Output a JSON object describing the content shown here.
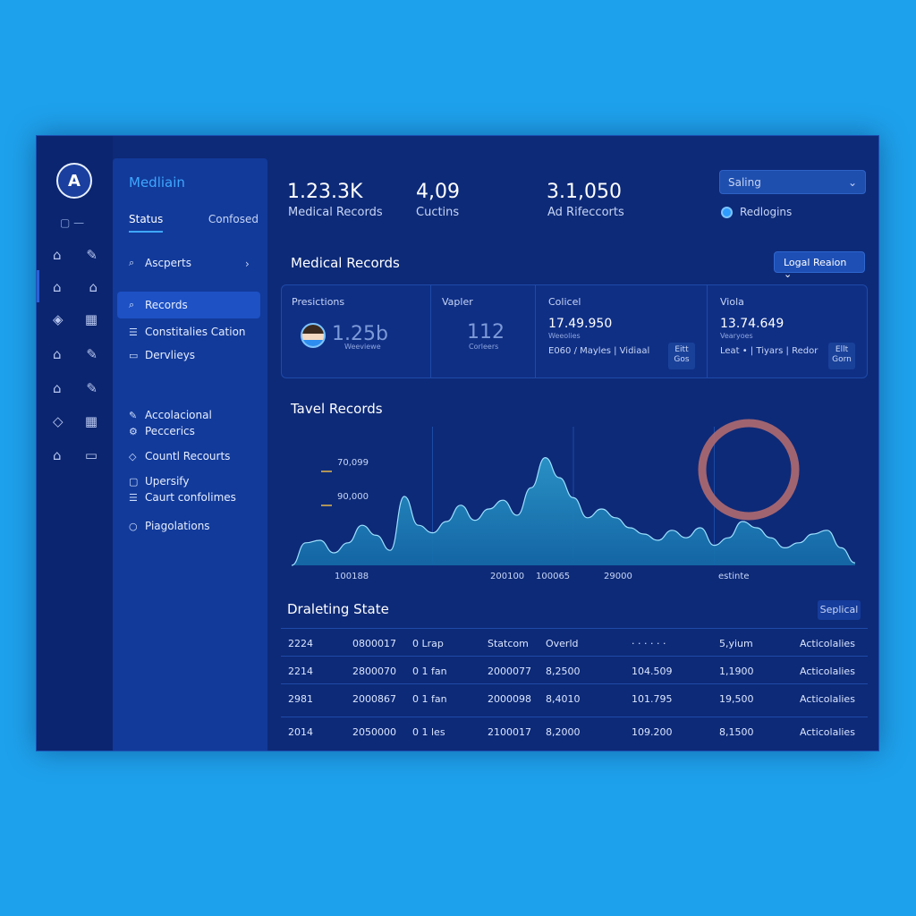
{
  "colors": {
    "page_bg": "#1ea1ec",
    "panel_bg": "#0d2a78",
    "accent": "#3ea7ff",
    "chart_fill": "#1a7fb0",
    "ring": "#b06a70"
  },
  "logo": {
    "text": "A"
  },
  "rail": {
    "top_label": "▢ —",
    "icons": [
      "home-icon",
      "edit-icon",
      "home-icon",
      "home-icon",
      "grid-icon",
      "grid-icon",
      "home-icon",
      "edit-icon",
      "home-icon",
      "edit-icon",
      "shield-icon",
      "grid-icon",
      "home-icon",
      "folder-icon"
    ]
  },
  "sidebar": {
    "title": "Medliain",
    "tabs": [
      "Status",
      "Confosed"
    ],
    "items": [
      {
        "label": "Ascperts",
        "icon": "search-icon"
      },
      {
        "label": "Records",
        "icon": "search-icon"
      },
      {
        "label": "Constitalies Cation",
        "icon": "list-icon"
      },
      {
        "label": "Dervlieys",
        "icon": "card-icon"
      },
      {
        "label": "Accolacional",
        "icon": "edit-icon"
      },
      {
        "label": "Peccerics",
        "icon": "gear-icon"
      },
      {
        "label": "Countl Recourts",
        "icon": "diamond-icon"
      },
      {
        "label": "Upersify",
        "icon": "box-icon"
      },
      {
        "label": "Caurt confolimes",
        "icon": "list-icon"
      },
      {
        "label": "Piagolations",
        "icon": "circle-icon"
      }
    ]
  },
  "stats": [
    {
      "value": "1.23.3K",
      "label": "Medical Records"
    },
    {
      "value": "4,09",
      "label": "Cuctins"
    },
    {
      "value": "3.1,050",
      "label": "Ad Rifeccorts"
    }
  ],
  "top_select": {
    "value": "Saling"
  },
  "top_radio": {
    "label": "Redlogins"
  },
  "records_section": {
    "title": "Medical Records",
    "button": "Logal Reaion"
  },
  "cards": [
    {
      "title": "Presictions",
      "big": "1.25b",
      "sub": "Weeviewe"
    },
    {
      "title": "Vapler",
      "big": "112",
      "sub": "Corleers"
    },
    {
      "title": "Colicel",
      "value": "17.49.950",
      "sub": "Weeolies",
      "row": "E060 / Mayles | Vidiaal",
      "btn": "Eitt Gos"
    },
    {
      "title": "Viola",
      "value": "13.74.649",
      "sub": "Vearyoes",
      "row": "Leat • | Tiyars | Redor",
      "btn": "Ellt Gorn"
    }
  ],
  "chart_section": {
    "title": "Tavel Records"
  },
  "chart_data": {
    "type": "area",
    "x": [
      0,
      1,
      2,
      3,
      4,
      5,
      6,
      7,
      8,
      9,
      10,
      11,
      12,
      13,
      14,
      15,
      16,
      17,
      18,
      19,
      20,
      21,
      22,
      23,
      24,
      25,
      26,
      27,
      28,
      29,
      30,
      31,
      32,
      33,
      34,
      35,
      36,
      37,
      38,
      39,
      40
    ],
    "y": [
      0.0,
      0.18,
      0.2,
      0.1,
      0.18,
      0.32,
      0.24,
      0.12,
      0.55,
      0.32,
      0.26,
      0.35,
      0.48,
      0.36,
      0.45,
      0.52,
      0.4,
      0.62,
      0.86,
      0.7,
      0.54,
      0.38,
      0.45,
      0.38,
      0.3,
      0.25,
      0.2,
      0.28,
      0.22,
      0.3,
      0.16,
      0.22,
      0.35,
      0.3,
      0.22,
      0.14,
      0.18,
      0.25,
      0.28,
      0.14,
      0.02
    ],
    "ytick_labels": [
      "70,099",
      "90,000"
    ],
    "xtick_labels": [
      "100188",
      "200100",
      "100065",
      "29000",
      "estinte"
    ],
    "donut_value": 1.0
  },
  "table_section": {
    "title": "Draleting State",
    "button": "Seplical"
  },
  "table": {
    "rows": [
      [
        "2224",
        "0800017",
        "0 Lrap",
        "Statcom",
        "Overld",
        "· · · · · ·",
        "5,yium",
        "Acticolalies"
      ],
      [
        "2214",
        "2800070",
        "0 1 fan",
        "2000077",
        "8,2500",
        "104.509",
        "1,1900",
        "Acticolalies"
      ],
      [
        "2981",
        "2000867",
        "0 1 fan",
        "2000098",
        "8,4010",
        "101.795",
        "19,500",
        "Acticolalies"
      ],
      [
        "2014",
        "2050000",
        "0 1 les",
        "2100017",
        "8,2000",
        "109.200",
        "8,1500",
        "Acticolalies"
      ]
    ]
  }
}
